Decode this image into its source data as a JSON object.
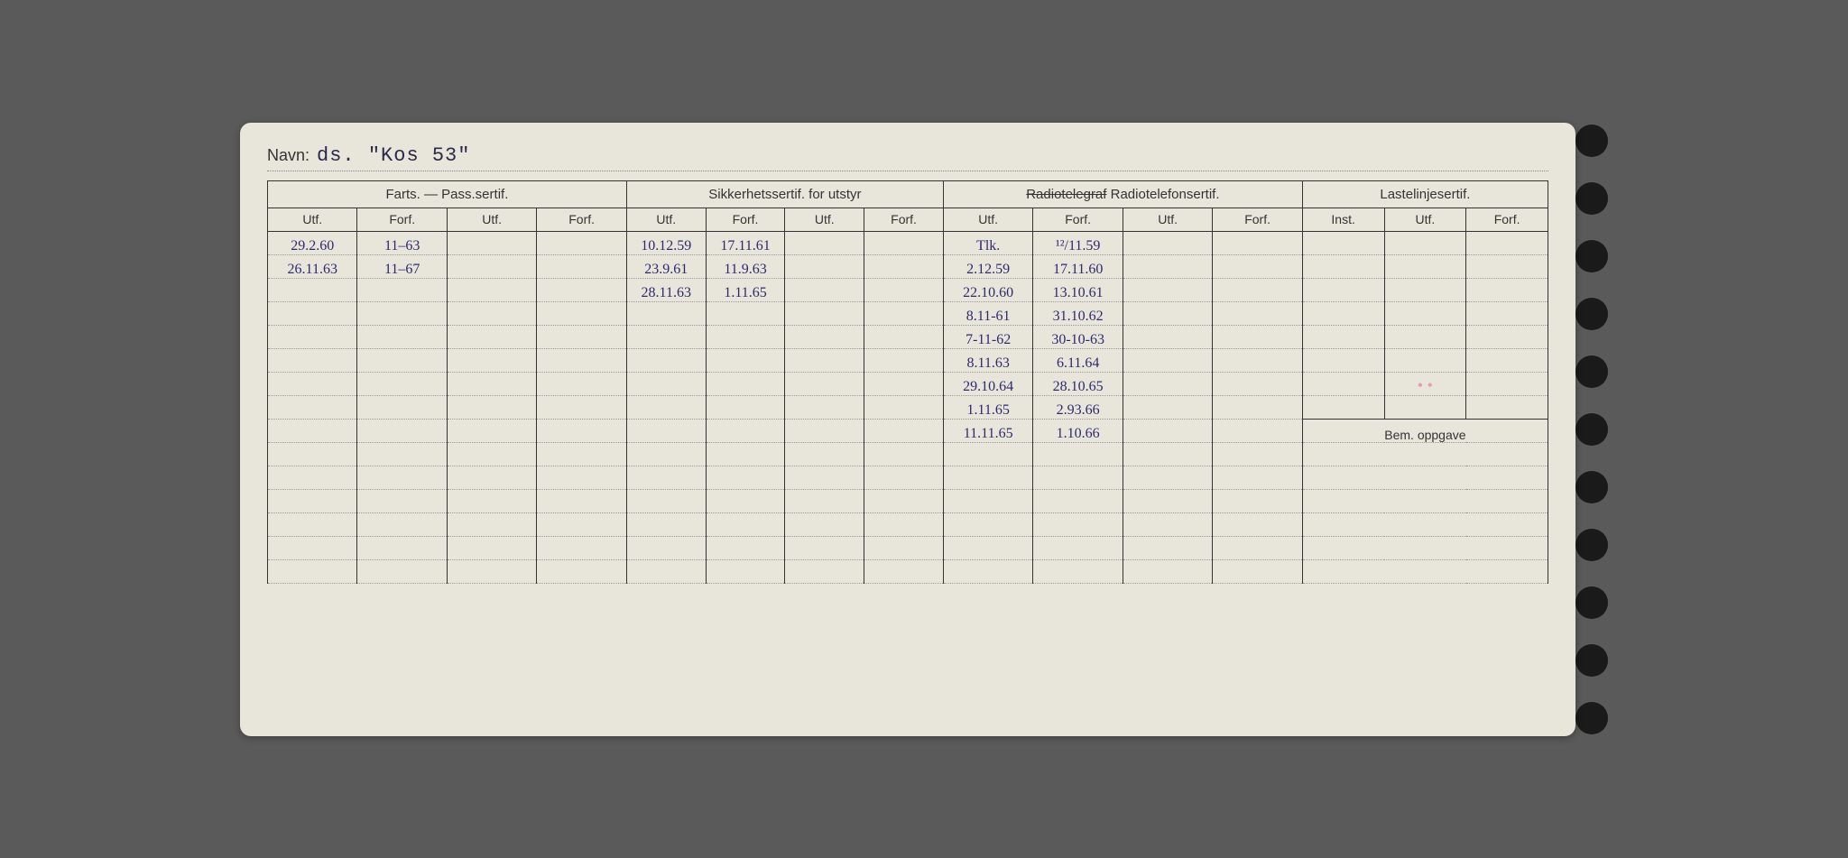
{
  "navn": {
    "label": "Navn:",
    "value": "ds. \"Kos 53\""
  },
  "sections": {
    "farts": {
      "title": "Farts. — Pass.sertif.",
      "cols": [
        "Utf.",
        "Forf.",
        "Utf.",
        "Forf."
      ]
    },
    "sikk": {
      "title": "Sikkerhetssertif. for utstyr",
      "cols": [
        "Utf.",
        "Forf.",
        "Utf.",
        "Forf."
      ]
    },
    "radio": {
      "title_strike": "Radiotelegraf",
      "title_rest": " Radiotelefonsertif.",
      "cols": [
        "Utf.",
        "Forf.",
        "Utf.",
        "Forf."
      ]
    },
    "laste": {
      "title": "Lastelinjesertif.",
      "cols": [
        "Inst.",
        "Utf.",
        "Forf."
      ]
    }
  },
  "rows": [
    {
      "farts": [
        "29.2.60",
        "11–63",
        "",
        ""
      ],
      "sikk": [
        "10.12.59",
        "17.11.61",
        "",
        ""
      ],
      "radio": [
        "Tlk.",
        "¹²/11.59",
        "",
        ""
      ],
      "laste": [
        "",
        "",
        ""
      ]
    },
    {
      "farts": [
        "26.11.63",
        "11–67",
        "",
        ""
      ],
      "sikk": [
        "23.9.61",
        "11.9.63",
        "",
        ""
      ],
      "radio": [
        "2.12.59",
        "17.11.60",
        "",
        ""
      ],
      "laste": [
        "",
        "",
        ""
      ]
    },
    {
      "farts": [
        "",
        "",
        "",
        ""
      ],
      "sikk": [
        "28.11.63",
        "1.11.65",
        "",
        ""
      ],
      "radio": [
        "22.10.60",
        "13.10.61",
        "",
        ""
      ],
      "laste": [
        "",
        "",
        ""
      ]
    },
    {
      "farts": [
        "",
        "",
        "",
        ""
      ],
      "sikk": [
        "",
        "",
        "",
        ""
      ],
      "radio": [
        "8.11-61",
        "31.10.62",
        "",
        ""
      ],
      "laste": [
        "",
        "",
        ""
      ]
    },
    {
      "farts": [
        "",
        "",
        "",
        ""
      ],
      "sikk": [
        "",
        "",
        "",
        ""
      ],
      "radio": [
        "7-11-62",
        "30-10-63",
        "",
        ""
      ],
      "laste": [
        "",
        "",
        ""
      ]
    },
    {
      "farts": [
        "",
        "",
        "",
        ""
      ],
      "sikk": [
        "",
        "",
        "",
        ""
      ],
      "radio": [
        "8.11.63",
        "6.11.64",
        "",
        ""
      ],
      "laste": [
        "",
        "",
        ""
      ]
    },
    {
      "farts": [
        "",
        "",
        "",
        ""
      ],
      "sikk": [
        "",
        "",
        "",
        ""
      ],
      "radio": [
        "29.10.64",
        "28.10.65",
        "",
        ""
      ],
      "laste": [
        "",
        "• •",
        ""
      ]
    },
    {
      "farts": [
        "",
        "",
        "",
        ""
      ],
      "sikk": [
        "",
        "",
        "",
        ""
      ],
      "radio": [
        "1.11.65",
        "2.93.66",
        "",
        ""
      ],
      "laste": [
        "",
        "",
        ""
      ]
    },
    {
      "farts": [
        "",
        "",
        "",
        ""
      ],
      "sikk": [
        "",
        "",
        "",
        ""
      ],
      "radio": [
        "11.11.65",
        "1.10.66",
        "",
        ""
      ],
      "laste": "BEM"
    }
  ],
  "bem_label": "Bem. oppgave",
  "blank_rows_after": 6,
  "colors": {
    "card_bg": "#e8e6db",
    "page_bg": "#5a5a5a",
    "ink_handwritten": "#2d2a6e",
    "ink_print": "#333333",
    "dotted_rule": "#999999",
    "solid_rule": "#333333",
    "pink": "#e89bb5"
  }
}
